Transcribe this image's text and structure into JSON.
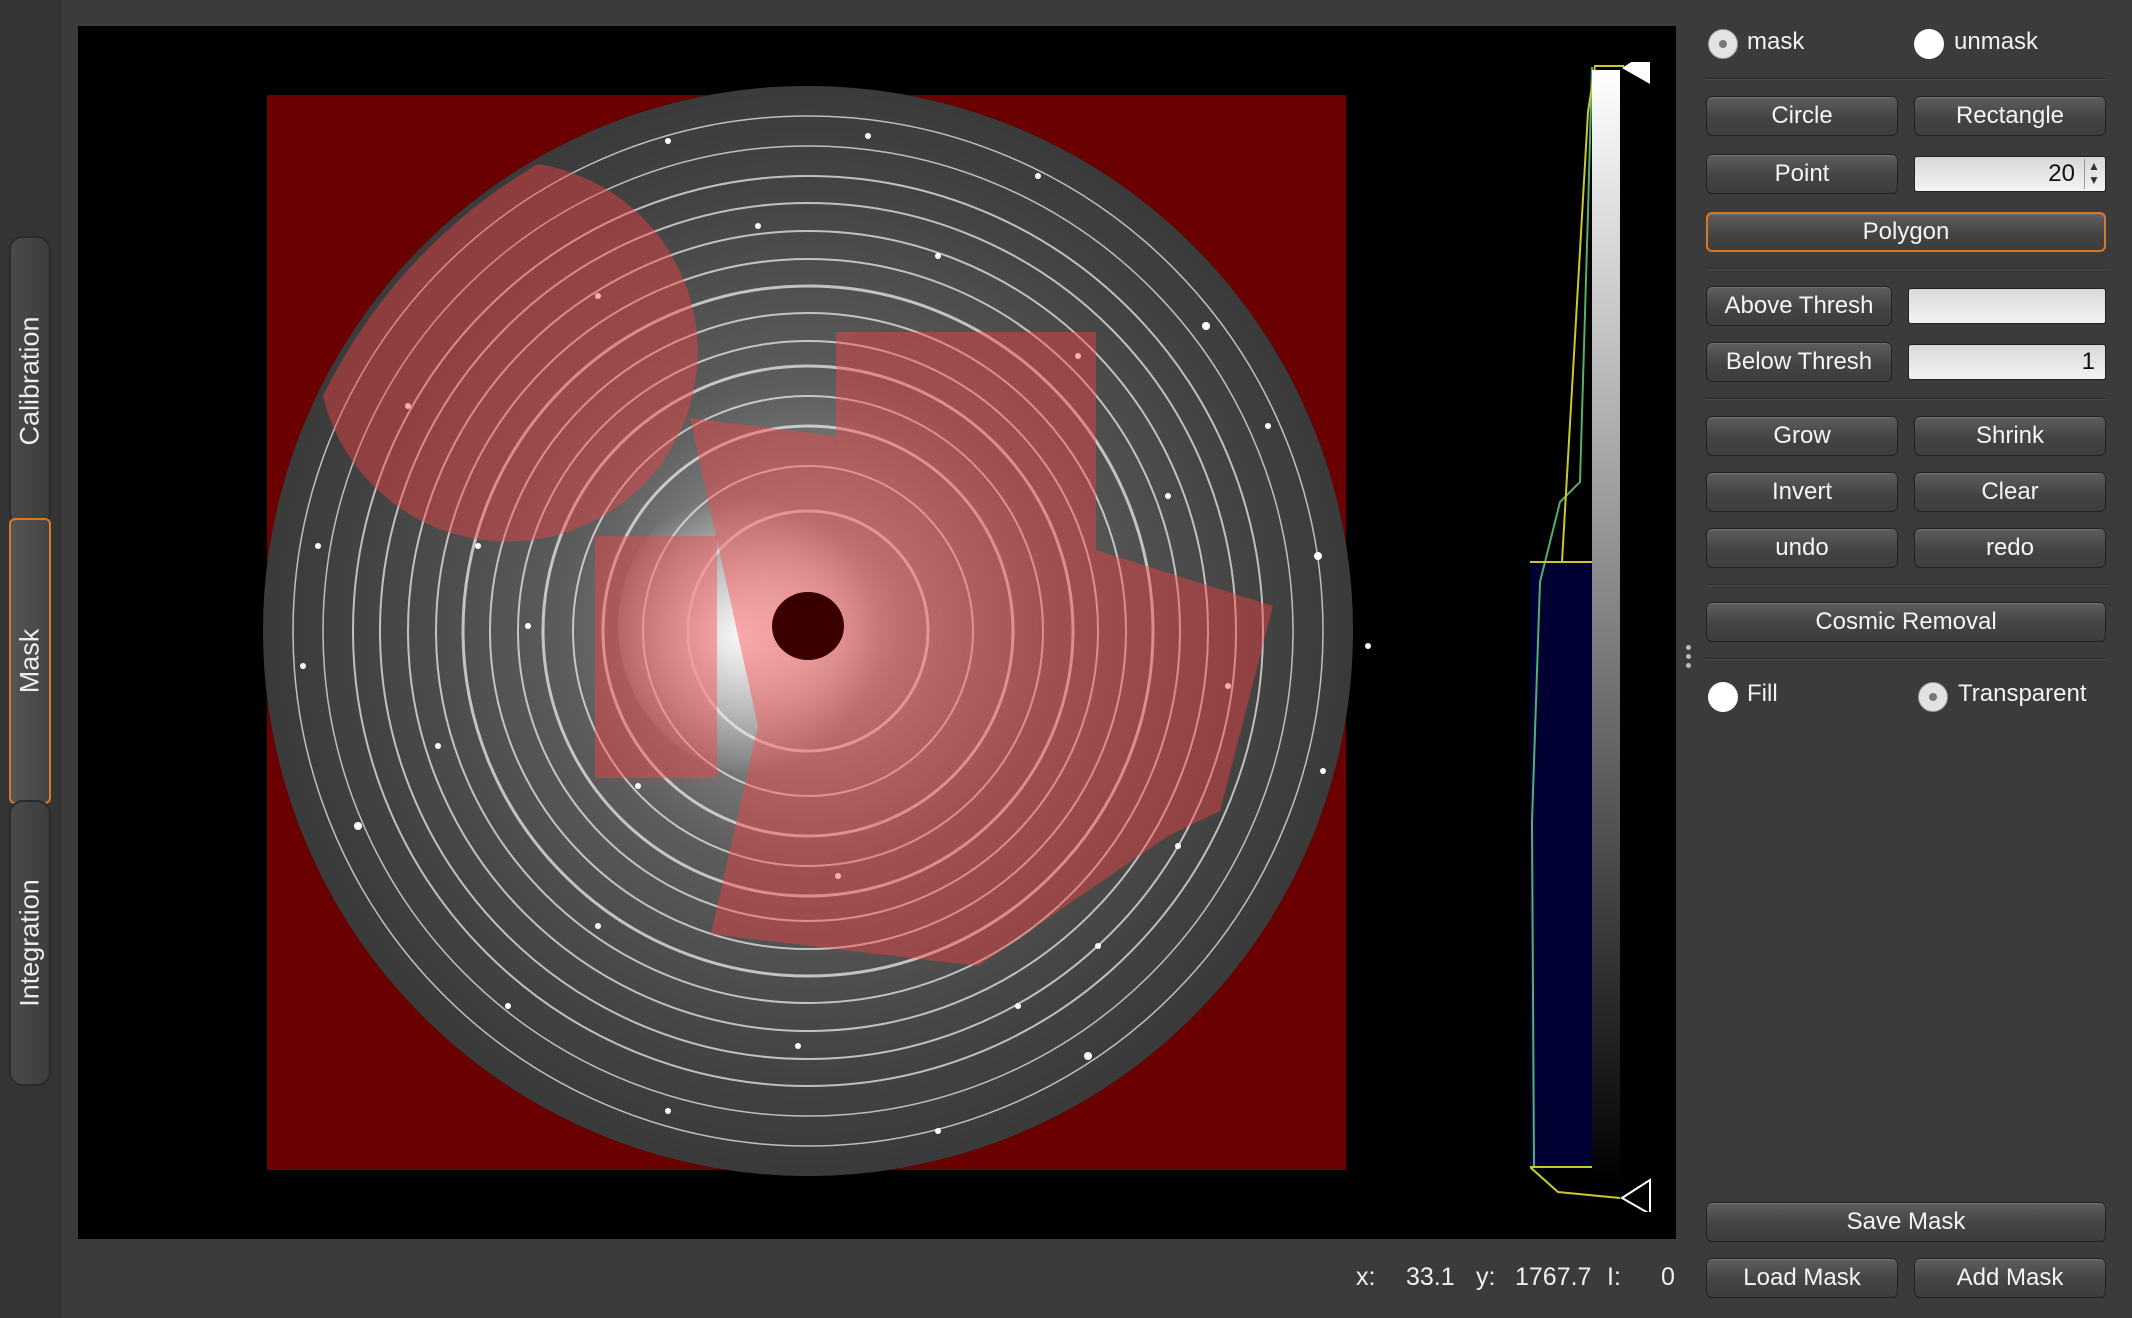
{
  "tabs": [
    {
      "label": "Calibration",
      "active": false
    },
    {
      "label": "Mask",
      "active": true
    },
    {
      "label": "Integration",
      "active": false
    }
  ],
  "mask_mode": {
    "mask_label": "mask",
    "unmask_label": "unmask",
    "selected": "mask"
  },
  "tools": {
    "circle": "Circle",
    "rectangle": "Rectangle",
    "point": "Point",
    "point_size": "20",
    "polygon": "Polygon",
    "active_tool": "Polygon"
  },
  "threshold": {
    "above_label": "Above Thresh",
    "above_value": "",
    "below_label": "Below Thresh",
    "below_value": "1"
  },
  "operations": {
    "grow": "Grow",
    "shrink": "Shrink",
    "invert": "Invert",
    "clear": "Clear",
    "undo": "undo",
    "redo": "redo",
    "cosmic": "Cosmic Removal"
  },
  "display": {
    "fill_label": "Fill",
    "transparent_label": "Transparent",
    "selected": "Transparent"
  },
  "file": {
    "save": "Save Mask",
    "load": "Load Mask",
    "add": "Add Mask"
  },
  "status": {
    "x_label": "x:",
    "x_value": "33.1",
    "y_label": "y:",
    "y_value": "1767.7",
    "i_label": "I:",
    "i_value": "0"
  },
  "colors": {
    "mask_opaque": "#6b0000",
    "mask_transparent": "#ff5a5a",
    "accent": "#d27a2a",
    "histogram_fill": "#000033"
  }
}
